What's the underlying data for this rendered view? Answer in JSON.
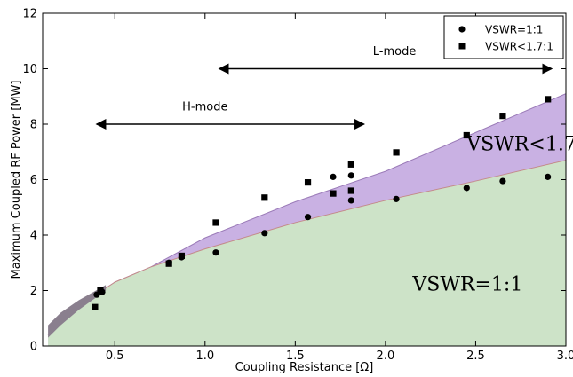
{
  "chart_data": {
    "type": "scatter",
    "xlabel": "Coupling Resistance [Ω]",
    "ylabel": "Maximum Coupled RF Power [MW]",
    "xlim": [
      0.1,
      3.0
    ],
    "ylim": [
      0,
      12
    ],
    "xticks": [
      "0.5",
      "1.0",
      "1.5",
      "2.0",
      "2.5",
      "3.0"
    ],
    "yticks": [
      "0",
      "2",
      "4",
      "6",
      "8",
      "10",
      "12"
    ],
    "grid": false,
    "legend": {
      "placement": "top-right",
      "entries": [
        "VSWR=1:1",
        "VSWR<1.7:1"
      ]
    },
    "series": [
      {
        "name": "VSWR=1:1",
        "marker": "circle",
        "color": "#000000",
        "points": [
          [
            0.4,
            1.85
          ],
          [
            0.43,
            1.95
          ],
          [
            0.8,
            3.0
          ],
          [
            0.87,
            3.2
          ],
          [
            1.06,
            3.37
          ],
          [
            1.33,
            4.07
          ],
          [
            1.57,
            4.65
          ],
          [
            1.71,
            6.1
          ],
          [
            1.81,
            5.25
          ],
          [
            1.81,
            6.15
          ],
          [
            2.06,
            5.3
          ],
          [
            2.45,
            5.7
          ],
          [
            2.65,
            5.95
          ],
          [
            2.9,
            6.1
          ]
        ]
      },
      {
        "name": "VSWR<1.7:1",
        "marker": "square",
        "color": "#000000",
        "points": [
          [
            0.39,
            1.4
          ],
          [
            0.42,
            2.0
          ],
          [
            0.8,
            2.97
          ],
          [
            0.87,
            3.25
          ],
          [
            1.06,
            4.45
          ],
          [
            1.33,
            5.35
          ],
          [
            1.57,
            5.9
          ],
          [
            1.71,
            5.5
          ],
          [
            1.81,
            5.6
          ],
          [
            1.81,
            6.55
          ],
          [
            2.06,
            6.98
          ],
          [
            2.45,
            7.6
          ],
          [
            2.65,
            8.3
          ],
          [
            2.9,
            8.9
          ]
        ]
      }
    ],
    "regions": [
      {
        "label": "VSWR=1:1",
        "color": "#cde3c8",
        "stroke": "#c48a8a",
        "upper": [
          [
            0.13,
            0.4
          ],
          [
            0.2,
            0.9
          ],
          [
            0.3,
            1.45
          ],
          [
            0.5,
            2.3
          ],
          [
            0.7,
            2.85
          ],
          [
            1.0,
            3.5
          ],
          [
            1.5,
            4.45
          ],
          [
            2.0,
            5.25
          ],
          [
            2.5,
            5.95
          ],
          [
            3.0,
            6.7
          ]
        ]
      },
      {
        "label": "VSWR<1.7",
        "color": "#c9b1e3",
        "stroke": "#9b7bb8",
        "upper": [
          [
            0.13,
            0.4
          ],
          [
            0.2,
            0.9
          ],
          [
            0.3,
            1.45
          ],
          [
            0.5,
            2.3
          ],
          [
            0.7,
            2.85
          ],
          [
            1.0,
            3.9
          ],
          [
            1.5,
            5.2
          ],
          [
            2.0,
            6.3
          ],
          [
            2.5,
            7.7
          ],
          [
            3.0,
            9.1
          ]
        ]
      },
      {
        "label": "",
        "color": "#8a7f8e",
        "upper": [
          [
            0.13,
            0.75
          ],
          [
            0.2,
            1.2
          ],
          [
            0.3,
            1.65
          ],
          [
            0.45,
            2.2
          ]
        ],
        "lower": [
          [
            0.13,
            0.3
          ],
          [
            0.2,
            0.75
          ],
          [
            0.3,
            1.3
          ],
          [
            0.45,
            2.0
          ]
        ]
      }
    ],
    "annotations": [
      {
        "text": "L-mode",
        "arrow_from": [
          1.08,
          10
        ],
        "arrow_to": [
          2.92,
          10
        ],
        "text_at": [
          2.05,
          10.5
        ]
      },
      {
        "text": "H-mode",
        "arrow_from": [
          0.4,
          8
        ],
        "arrow_to": [
          1.88,
          8
        ],
        "text_at": [
          1.0,
          8.5
        ]
      }
    ],
    "region_labels": [
      {
        "text": "VSWR<1.7",
        "at": [
          2.45,
          7.05
        ]
      },
      {
        "text": "VSWR=1:1",
        "at": [
          2.15,
          2.0
        ]
      }
    ]
  }
}
